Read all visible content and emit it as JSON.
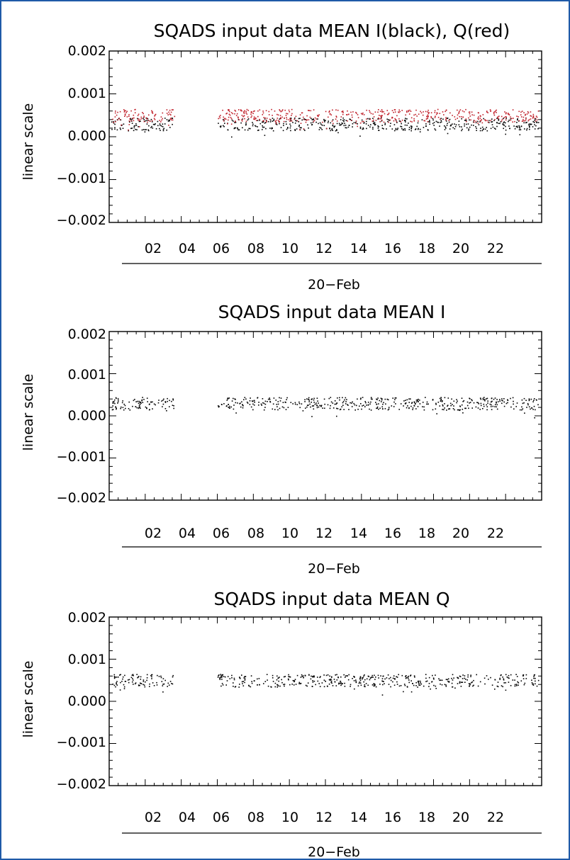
{
  "chart_data": [
    {
      "type": "scatter",
      "title": "SQADS input data MEAN I(black), Q(red)",
      "ylabel": "linear scale",
      "xlabel": "20−Feb",
      "ylim": [
        -0.002,
        0.002
      ],
      "xlim": [
        0,
        24
      ],
      "y_ticks": [
        "0.002",
        "0.001",
        "0.000",
        "−0.001",
        "−0.002"
      ],
      "y_tick_values": [
        0.002,
        0.001,
        0.0,
        -0.001,
        -0.002
      ],
      "x_ticks": [
        "02",
        "04",
        "06",
        "08",
        "10",
        "12",
        "14",
        "16",
        "18",
        "20",
        "22"
      ],
      "x_tick_values": [
        2,
        4,
        6,
        8,
        10,
        12,
        14,
        16,
        18,
        20,
        22
      ],
      "grid": false,
      "series": [
        {
          "color": "#000000",
          "band": [
            0.00015,
            0.00045
          ],
          "segments": [
            [
              0.1,
              3.6
            ],
            [
              6.0,
              23.8
            ]
          ]
        },
        {
          "color": "#c0202a",
          "band": [
            0.00035,
            0.00065
          ],
          "segments": [
            [
              0.1,
              3.6
            ],
            [
              6.0,
              23.8
            ]
          ]
        }
      ]
    },
    {
      "type": "scatter",
      "title": "SQADS input data MEAN I",
      "ylabel": "linear scale",
      "xlabel": "20−Feb",
      "ylim": [
        -0.002,
        0.002
      ],
      "xlim": [
        0,
        24
      ],
      "y_ticks": [
        "0.002",
        "0.001",
        "0.000",
        "−0.001",
        "−0.002"
      ],
      "y_tick_values": [
        0.002,
        0.001,
        0.0,
        -0.001,
        -0.002
      ],
      "x_ticks": [
        "02",
        "04",
        "06",
        "08",
        "10",
        "12",
        "14",
        "16",
        "18",
        "20",
        "22"
      ],
      "x_tick_values": [
        2,
        4,
        6,
        8,
        10,
        12,
        14,
        16,
        18,
        20,
        22
      ],
      "grid": false,
      "series": [
        {
          "color": "#000000",
          "band": [
            0.00015,
            0.00045
          ],
          "segments": [
            [
              0.1,
              3.6
            ],
            [
              6.0,
              23.8
            ]
          ]
        }
      ]
    },
    {
      "type": "scatter",
      "title": "SQADS input data MEAN Q",
      "ylabel": "linear scale",
      "xlabel": "20−Feb",
      "ylim": [
        -0.002,
        0.002
      ],
      "xlim": [
        0,
        24
      ],
      "y_ticks": [
        "0.002",
        "0.001",
        "0.000",
        "−0.001",
        "−0.002"
      ],
      "y_tick_values": [
        0.002,
        0.001,
        0.0,
        -0.001,
        -0.002
      ],
      "x_ticks": [
        "02",
        "04",
        "06",
        "08",
        "10",
        "12",
        "14",
        "16",
        "18",
        "20",
        "22"
      ],
      "x_tick_values": [
        2,
        4,
        6,
        8,
        10,
        12,
        14,
        16,
        18,
        20,
        22
      ],
      "grid": false,
      "series": [
        {
          "color": "#000000",
          "band": [
            0.00035,
            0.00065
          ],
          "segments": [
            [
              0.1,
              3.6
            ],
            [
              6.0,
              23.8
            ]
          ]
        }
      ]
    }
  ]
}
